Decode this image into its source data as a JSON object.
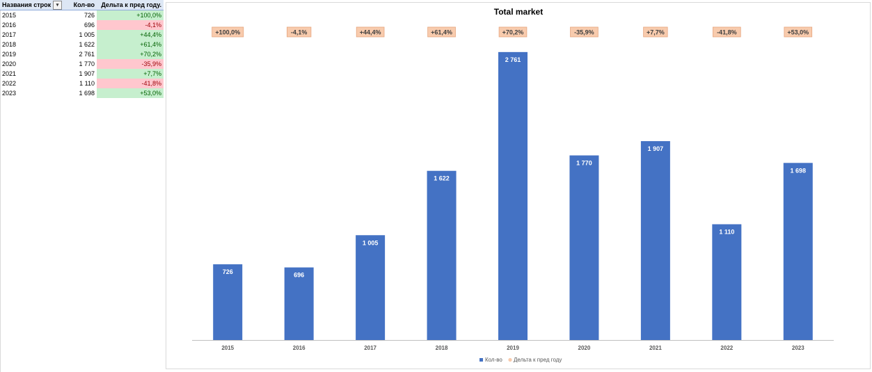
{
  "table": {
    "headers": [
      "Названия строк",
      "Кол-во",
      "Дельта к пред году."
    ],
    "rows": [
      {
        "year": "2015",
        "count": "726",
        "delta": "+100,0%",
        "sign": "pos"
      },
      {
        "year": "2016",
        "count": "696",
        "delta": "-4,1%",
        "sign": "neg"
      },
      {
        "year": "2017",
        "count": "1 005",
        "delta": "+44,4%",
        "sign": "pos"
      },
      {
        "year": "2018",
        "count": "1 622",
        "delta": "+61,4%",
        "sign": "pos"
      },
      {
        "year": "2019",
        "count": "2 761",
        "delta": "+70,2%",
        "sign": "pos"
      },
      {
        "year": "2020",
        "count": "1 770",
        "delta": "-35,9%",
        "sign": "neg"
      },
      {
        "year": "2021",
        "count": "1 907",
        "delta": "+7,7%",
        "sign": "pos"
      },
      {
        "year": "2022",
        "count": "1 110",
        "delta": "-41,8%",
        "sign": "neg"
      },
      {
        "year": "2023",
        "count": "1 698",
        "delta": "+53,0%",
        "sign": "pos"
      }
    ]
  },
  "colors": {
    "bar": "#4472c4",
    "delta_fill": "#f8cbad",
    "delta_border": "#e6a57e",
    "axis": "#bfbfbf",
    "title": "#404040",
    "pos_fill": "#c6efce",
    "neg_fill": "#ffc7ce"
  },
  "chart_data": {
    "type": "bar",
    "title": "Total market",
    "categories": [
      "2015",
      "2016",
      "2017",
      "2018",
      "2019",
      "2020",
      "2021",
      "2022",
      "2023"
    ],
    "series": [
      {
        "name": "Кол-во",
        "values": [
          726,
          696,
          1005,
          1622,
          2761,
          1770,
          1907,
          1110,
          1698
        ],
        "labels": [
          "726",
          "696",
          "1 005",
          "1 622",
          "2 761",
          "1 770",
          "1 907",
          "1 110",
          "1 698"
        ]
      },
      {
        "name": "Дельта к пред году",
        "values": [
          100.0,
          -4.1,
          44.4,
          61.4,
          70.2,
          -35.9,
          7.7,
          -41.8,
          53.0
        ],
        "labels": [
          "+100,0%",
          "-4,1%",
          "+44,4%",
          "+61,4%",
          "+70,2%",
          "-35,9%",
          "+7,7%",
          "-41,8%",
          "+53,0%"
        ]
      }
    ],
    "ylim": [
      0,
      3000
    ],
    "xlabel": "",
    "ylabel": "",
    "grid": false,
    "legend_position": "bottom"
  }
}
